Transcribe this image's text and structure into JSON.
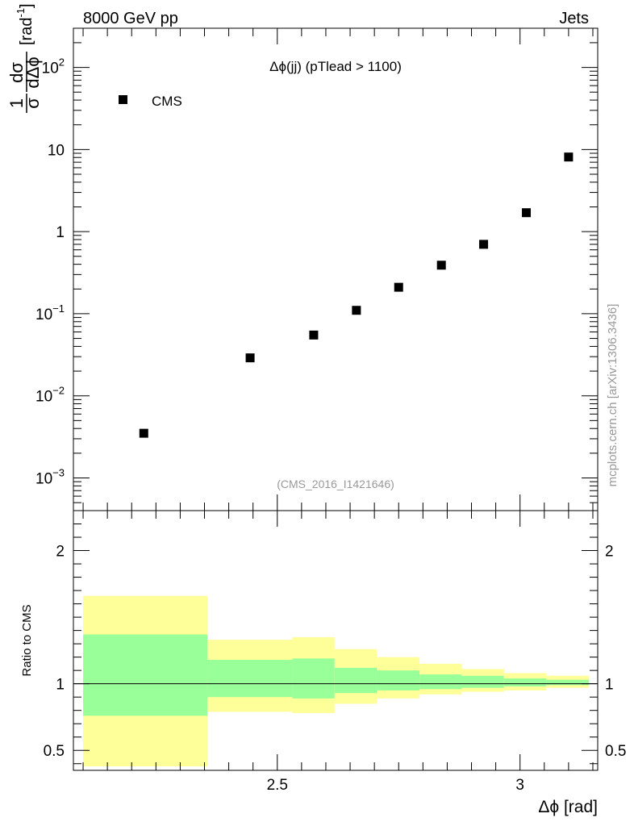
{
  "header": {
    "left": "8000 GeV pp",
    "right": "Jets"
  },
  "side_label": "mcplots.cern.ch [arXiv:1306.3436]",
  "chart_data": [
    {
      "type": "scatter",
      "title": "Δϕ(jj) (pTlead >  1100)",
      "annotation": "(CMS_2016_I1421646)",
      "ylabel": "1/σ dσ/dΔϕ [rad⁻¹]",
      "ylabel_parts": {
        "num": "1",
        "den": "σ",
        "dnum": "dσ",
        "dden": "dΔϕ",
        "unit": "[rad",
        "unit_sup": "-1",
        "unit_close": "]"
      },
      "yscale": "log",
      "ylim": [
        0.0004,
        300
      ],
      "xlim": [
        2.08,
        3.16
      ],
      "y_ticks": [
        {
          "value": 0.001,
          "base": "10",
          "exp": "−3"
        },
        {
          "value": 0.01,
          "base": "10",
          "exp": "−2"
        },
        {
          "value": 0.1,
          "base": "10",
          "exp": "−1"
        },
        {
          "value": 1,
          "base": "1",
          "exp": ""
        },
        {
          "value": 10,
          "base": "10",
          "exp": ""
        },
        {
          "value": 100,
          "base": "10",
          "exp": "2"
        }
      ],
      "legend": {
        "position": "top-left",
        "entries": [
          "CMS"
        ]
      },
      "series": [
        {
          "name": "CMS",
          "marker": "square",
          "color": "#000000",
          "x": [
            2.225,
            2.444,
            2.575,
            2.663,
            2.75,
            2.838,
            2.925,
            3.013,
            3.1
          ],
          "y": [
            0.0035,
            0.029,
            0.055,
            0.11,
            0.21,
            0.39,
            0.7,
            1.7,
            8.1
          ]
        }
      ]
    },
    {
      "type": "area",
      "ylabel": "Ratio to CMS",
      "xlabel": "Δϕ [rad]",
      "xlim": [
        2.08,
        3.16
      ],
      "ylim": [
        0.35,
        2.3
      ],
      "x_ticks": [
        2.5,
        3
      ],
      "x_tick_labels": [
        "2.5",
        "3"
      ],
      "y_ticks": [
        0.5,
        1,
        2
      ],
      "y_tick_labels": [
        "0.5",
        "1",
        "2"
      ],
      "reference_line": 1,
      "band_colors": {
        "outer": "#ffff99",
        "inner": "#99ff99"
      },
      "bins": [
        {
          "lo": 2.1,
          "hi": 2.356,
          "outer": [
            0.38,
            1.66
          ],
          "inner": [
            0.76,
            1.37
          ]
        },
        {
          "lo": 2.356,
          "hi": 2.531,
          "outer": [
            0.79,
            1.33
          ],
          "inner": [
            0.9,
            1.18
          ]
        },
        {
          "lo": 2.531,
          "hi": 2.618,
          "outer": [
            0.78,
            1.35
          ],
          "inner": [
            0.89,
            1.19
          ]
        },
        {
          "lo": 2.618,
          "hi": 2.705,
          "outer": [
            0.85,
            1.26
          ],
          "inner": [
            0.93,
            1.12
          ]
        },
        {
          "lo": 2.705,
          "hi": 2.793,
          "outer": [
            0.89,
            1.2
          ],
          "inner": [
            0.95,
            1.1
          ]
        },
        {
          "lo": 2.793,
          "hi": 2.88,
          "outer": [
            0.92,
            1.15
          ],
          "inner": [
            0.96,
            1.07
          ]
        },
        {
          "lo": 2.88,
          "hi": 2.967,
          "outer": [
            0.94,
            1.11
          ],
          "inner": [
            0.97,
            1.06
          ]
        },
        {
          "lo": 2.967,
          "hi": 3.054,
          "outer": [
            0.95,
            1.08
          ],
          "inner": [
            0.98,
            1.04
          ]
        },
        {
          "lo": 3.054,
          "hi": 3.142,
          "outer": [
            0.97,
            1.06
          ],
          "inner": [
            0.99,
            1.03
          ]
        }
      ]
    }
  ]
}
